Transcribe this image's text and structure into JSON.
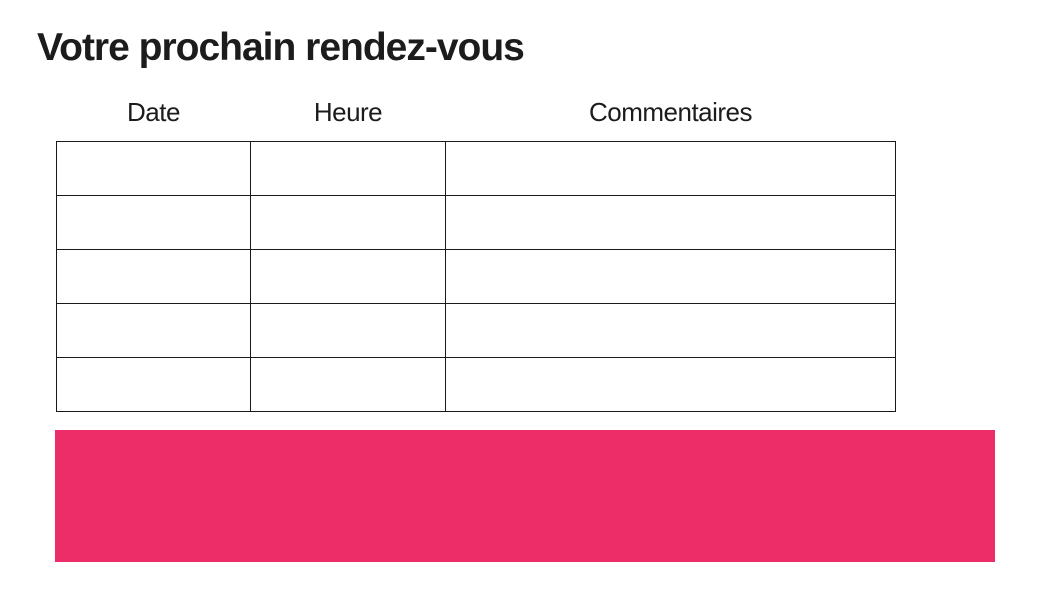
{
  "page": {
    "background_color": "#ffffff"
  },
  "header": {
    "title": "Votre prochain rendez-vous"
  },
  "appointments_table": {
    "column_headers": [
      "Date",
      "Heure",
      "Commentaires"
    ],
    "rows": [
      [
        "",
        "",
        ""
      ],
      [
        "",
        "",
        ""
      ],
      [
        "",
        "",
        ""
      ],
      [
        "",
        "",
        ""
      ],
      [
        "",
        "",
        ""
      ]
    ]
  },
  "highlight_bar": {
    "text": ""
  },
  "colors": {
    "text": "#1c1c1c",
    "table_border": "#1a1a1a",
    "accent_pink": "#ED2D68"
  }
}
